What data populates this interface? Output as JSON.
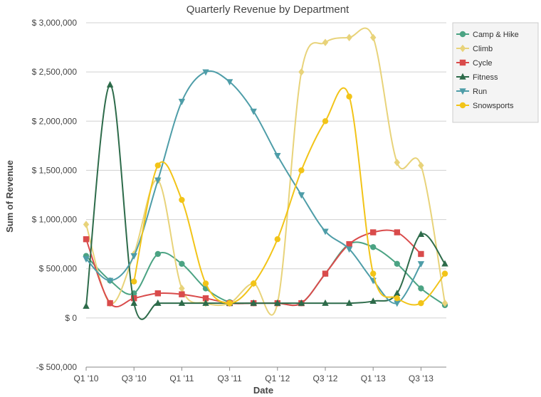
{
  "chart_data": {
    "type": "line",
    "title": "Quarterly Revenue by Department",
    "xlabel": "Date",
    "ylabel": "Sum of Revenue",
    "ylim": [
      -500000,
      3000000
    ],
    "yticks": [
      {
        "value": 3000000,
        "label": "$ 3,000,000"
      },
      {
        "value": 2500000,
        "label": "$ 2,500,000"
      },
      {
        "value": 2000000,
        "label": "$ 2,000,000"
      },
      {
        "value": 1500000,
        "label": "$ 1,500,000"
      },
      {
        "value": 1000000,
        "label": "$ 1,000,000"
      },
      {
        "value": 500000,
        "label": "$ 500,000"
      },
      {
        "value": 0,
        "label": "$ 0"
      },
      {
        "value": -500000,
        "label": "-$ 500,000"
      }
    ],
    "categories": [
      "Q1 '10",
      "Q2 '10",
      "Q3 '10",
      "Q4 '10",
      "Q1 '11",
      "Q2 '11",
      "Q3 '11",
      "Q4 '11",
      "Q1 '12",
      "Q2 '12",
      "Q3 '12",
      "Q4 '12",
      "Q1 '13",
      "Q2 '13",
      "Q3 '13",
      "Q4 '13"
    ],
    "xtick_labels": [
      {
        "index": 0,
        "label": "Q1 '10"
      },
      {
        "index": 2,
        "label": "Q3 '10"
      },
      {
        "index": 4,
        "label": "Q1 '11"
      },
      {
        "index": 6,
        "label": "Q3 '11"
      },
      {
        "index": 8,
        "label": "Q1 '12"
      },
      {
        "index": 10,
        "label": "Q3 '12"
      },
      {
        "index": 12,
        "label": "Q1 '13"
      },
      {
        "index": 14,
        "label": "Q3 '13"
      }
    ],
    "grid": true,
    "legend_position": "top-right",
    "series": [
      {
        "name": "Camp & Hike",
        "color": "#4ba383",
        "marker": "circle",
        "values": [
          630000,
          380000,
          250000,
          650000,
          550000,
          300000,
          160000,
          150000,
          150000,
          150000,
          450000,
          750000,
          720000,
          550000,
          300000,
          130000
        ]
      },
      {
        "name": "Climb",
        "color": "#e8d37a",
        "marker": "diamond",
        "values": [
          950000,
          150000,
          650000,
          1400000,
          300000,
          150000,
          150000,
          350000,
          150000,
          2500000,
          2800000,
          2850000,
          2850000,
          1580000,
          1550000,
          150000
        ]
      },
      {
        "name": "Cycle",
        "color": "#d94b4b",
        "marker": "square",
        "values": [
          800000,
          150000,
          200000,
          250000,
          240000,
          200000,
          150000,
          150000,
          150000,
          150000,
          450000,
          750000,
          870000,
          870000,
          650000,
          null
        ]
      },
      {
        "name": "Fitness",
        "color": "#2d6b4a",
        "marker": "triangle-up",
        "values": [
          120000,
          2370000,
          150000,
          150000,
          150000,
          150000,
          150000,
          150000,
          150000,
          150000,
          150000,
          150000,
          170000,
          250000,
          850000,
          550000
        ]
      },
      {
        "name": "Run",
        "color": "#4e9da8",
        "marker": "triangle-down",
        "values": [
          600000,
          380000,
          630000,
          1400000,
          2200000,
          2500000,
          2400000,
          2100000,
          1650000,
          1250000,
          880000,
          700000,
          380000,
          150000,
          550000,
          null
        ]
      },
      {
        "name": "Snowsports",
        "color": "#f2c418",
        "marker": "circle",
        "values": [
          null,
          null,
          370000,
          1550000,
          1200000,
          350000,
          150000,
          350000,
          800000,
          1500000,
          2000000,
          2250000,
          450000,
          200000,
          150000,
          450000
        ]
      }
    ]
  }
}
